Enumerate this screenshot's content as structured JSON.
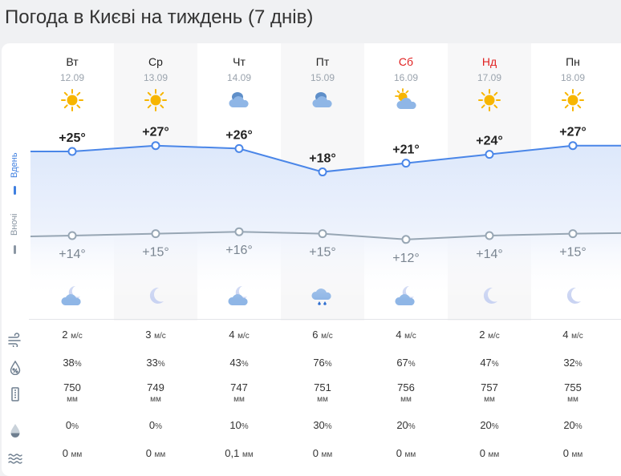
{
  "page_title": "Погода в Києві на тиждень (7 днів)",
  "labels": {
    "day": "Вдень",
    "night": "Вночі"
  },
  "days": [
    {
      "name": "Вт",
      "date": "12.09",
      "weekend": false,
      "day_icon": "sun-icon",
      "night_icon": "moon-cloud-icon",
      "day_temp": "+25°",
      "night_temp": "+14°",
      "wind": "2",
      "humidity": "38",
      "pressure": "750",
      "precip_prob": "0",
      "precip": "0"
    },
    {
      "name": "Ср",
      "date": "13.09",
      "weekend": false,
      "day_icon": "sun-icon",
      "night_icon": "moon-icon",
      "day_temp": "+27°",
      "night_temp": "+15°",
      "wind": "3",
      "humidity": "33",
      "pressure": "749",
      "precip_prob": "0",
      "precip": "0"
    },
    {
      "name": "Чт",
      "date": "14.09",
      "weekend": false,
      "day_icon": "cloudy-icon",
      "night_icon": "moon-cloud-icon",
      "day_temp": "+26°",
      "night_temp": "+16°",
      "wind": "4",
      "humidity": "43",
      "pressure": "747",
      "precip_prob": "10",
      "precip": "0,1"
    },
    {
      "name": "Пт",
      "date": "15.09",
      "weekend": false,
      "day_icon": "cloudy-icon",
      "night_icon": "rain-cloud-icon",
      "day_temp": "+18°",
      "night_temp": "+15°",
      "wind": "6",
      "humidity": "76",
      "pressure": "751",
      "precip_prob": "30",
      "precip": "0"
    },
    {
      "name": "Сб",
      "date": "16.09",
      "weekend": true,
      "day_icon": "sun-cloud-icon",
      "night_icon": "moon-cloud-icon",
      "day_temp": "+21°",
      "night_temp": "+12°",
      "wind": "4",
      "humidity": "67",
      "pressure": "756",
      "precip_prob": "20",
      "precip": "0"
    },
    {
      "name": "Нд",
      "date": "17.09",
      "weekend": true,
      "day_icon": "sun-icon",
      "night_icon": "moon-icon",
      "day_temp": "+24°",
      "night_temp": "+14°",
      "wind": "2",
      "humidity": "47",
      "pressure": "757",
      "precip_prob": "20",
      "precip": "0"
    },
    {
      "name": "Пн",
      "date": "18.09",
      "weekend": false,
      "day_icon": "sun-icon",
      "night_icon": "moon-icon",
      "day_temp": "+27°",
      "night_temp": "+15°",
      "wind": "4",
      "humidity": "32",
      "pressure": "755",
      "precip_prob": "20",
      "precip": "0"
    }
  ],
  "units": {
    "wind": "м/с",
    "humidity": "%",
    "pressure": "мм",
    "precip_prob": "%",
    "precip": "мм"
  },
  "row_icons": [
    "wind-icon",
    "humidity-icon",
    "pressure-icon",
    "precip-prob-icon",
    "precip-icon"
  ],
  "colors": {
    "day_line": "#4a86e8",
    "night_line": "#97a6b4",
    "weekend": "#e02020",
    "sun": "#f7b500"
  }
}
